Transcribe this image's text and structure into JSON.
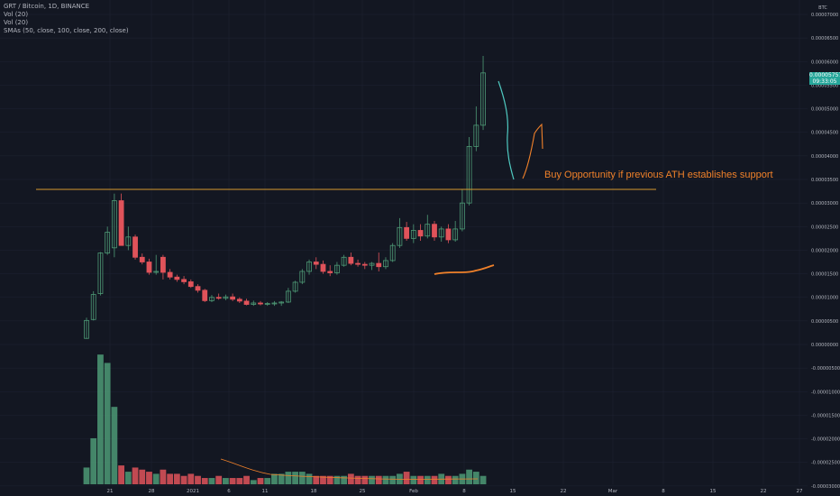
{
  "header": {
    "symbol_line": "GRT / Bitcoin, 1D, BINANCE",
    "vol_line_1": "Vol (20)",
    "vol_line_2": "Vol (20)",
    "sma_line": "SMAs (50, close, 100, close, 200, close)"
  },
  "axis": {
    "currency": "BTC",
    "price_ticks": [
      "0.00007000",
      "0.00006500",
      "0.00006000",
      "0.00005500",
      "0.00005000",
      "0.00004500",
      "0.00004000",
      "0.00003500",
      "0.00003000",
      "0.00002500",
      "0.00002000",
      "0.00001500",
      "0.00001000",
      "0.00000500",
      "0.00000000",
      "-0.00000500",
      "-0.00001000",
      "-0.00001500",
      "-0.00002000",
      "-0.00002500",
      "-0.00003000"
    ],
    "date_ticks": [
      "21",
      "28",
      "2021",
      "6",
      "11",
      "18",
      "25",
      "Feb",
      "8",
      "15",
      "22",
      "Mar",
      "8",
      "15",
      "22",
      "27"
    ]
  },
  "last_price": {
    "value": "0.00005757",
    "countdown": "09:33:05"
  },
  "annotation": {
    "text": "Buy Opportunity if previous ATH establishes support"
  },
  "colors": {
    "up": "#4e9a76",
    "down": "#e0535a",
    "annotation": "#f0812a",
    "level_line": "#d79a2e",
    "projection": "#4fc9c0",
    "background": "#131722",
    "grid": "#1f2433"
  },
  "chart_data": {
    "type": "candlestick",
    "title": "GRT / Bitcoin, 1D, BINANCE",
    "ylim": [
      -3e-05,
      7e-05
    ],
    "previous_ath_level": 3.17e-05,
    "candles": [
      {
        "o": 1.3e-06,
        "h": 5.7e-06,
        "l": 1.2e-06,
        "c": 5.1e-06
      },
      {
        "o": 5.3e-06,
        "h": 1.13e-05,
        "l": 5.1e-06,
        "c": 1.06e-05
      },
      {
        "o": 1.08e-05,
        "h": 1.96e-05,
        "l": 1.04e-05,
        "c": 1.94e-05
      },
      {
        "o": 1.94e-05,
        "h": 2.5e-05,
        "l": 1.9e-05,
        "c": 2.38e-05
      },
      {
        "o": 2.05e-05,
        "h": 3.2e-05,
        "l": 1.85e-05,
        "c": 3.05e-05
      },
      {
        "o": 3.05e-05,
        "h": 3.2e-05,
        "l": 2.1e-05,
        "c": 2.1e-05
      },
      {
        "o": 2.1e-05,
        "h": 2.5e-05,
        "l": 2e-05,
        "c": 2.28e-05
      },
      {
        "o": 2.28e-05,
        "h": 2.33e-05,
        "l": 1.8e-05,
        "c": 1.85e-05
      },
      {
        "o": 1.85e-05,
        "h": 1.93e-05,
        "l": 1.7e-05,
        "c": 1.75e-05
      },
      {
        "o": 1.75e-05,
        "h": 1.82e-05,
        "l": 1.48e-05,
        "c": 1.53e-05
      },
      {
        "o": 1.53e-05,
        "h": 1.9e-05,
        "l": 1.48e-05,
        "c": 1.55e-05
      },
      {
        "o": 1.85e-05,
        "h": 1.9e-05,
        "l": 1.38e-05,
        "c": 1.53e-05
      },
      {
        "o": 1.53e-05,
        "h": 1.6e-05,
        "l": 1.38e-05,
        "c": 1.43e-05
      },
      {
        "o": 1.43e-05,
        "h": 1.48e-05,
        "l": 1.33e-05,
        "c": 1.38e-05
      },
      {
        "o": 1.38e-05,
        "h": 1.45e-05,
        "l": 1.28e-05,
        "c": 1.33e-05
      },
      {
        "o": 1.33e-05,
        "h": 1.38e-05,
        "l": 1.2e-05,
        "c": 1.23e-05
      },
      {
        "o": 1.23e-05,
        "h": 1.28e-05,
        "l": 1.1e-05,
        "c": 1.15e-05
      },
      {
        "o": 1.15e-05,
        "h": 1.18e-05,
        "l": 9e-06,
        "c": 9.3e-06
      },
      {
        "o": 9.3e-06,
        "h": 1.05e-05,
        "l": 9e-06,
        "c": 1e-05
      },
      {
        "o": 1e-05,
        "h": 1.08e-05,
        "l": 9.5e-06,
        "c": 9.8e-06
      },
      {
        "o": 9.8e-06,
        "h": 1.06e-05,
        "l": 9.4e-06,
        "c": 1.01e-05
      },
      {
        "o": 1.01e-05,
        "h": 1.08e-05,
        "l": 9.2e-06,
        "c": 9.6e-06
      },
      {
        "o": 9.6e-06,
        "h": 1e-05,
        "l": 8.8e-06,
        "c": 9.2e-06
      },
      {
        "o": 9.2e-06,
        "h": 9.7e-06,
        "l": 8.3e-06,
        "c": 8.5e-06
      },
      {
        "o": 8.5e-06,
        "h": 9.3e-06,
        "l": 8.2e-06,
        "c": 8.8e-06
      },
      {
        "o": 8.8e-06,
        "h": 9.2e-06,
        "l": 8.3e-06,
        "c": 8.6e-06
      },
      {
        "o": 8.6e-06,
        "h": 9e-06,
        "l": 8.2e-06,
        "c": 8.7e-06
      },
      {
        "o": 8.7e-06,
        "h": 9.2e-06,
        "l": 8.2e-06,
        "c": 8.8e-06
      },
      {
        "o": 8.8e-06,
        "h": 9.2e-06,
        "l": 8.2e-06,
        "c": 9e-06
      },
      {
        "o": 9e-06,
        "h": 1.2e-05,
        "l": 8.8e-06,
        "c": 1.13e-05
      },
      {
        "o": 1.13e-05,
        "h": 1.35e-05,
        "l": 1.1e-05,
        "c": 1.32e-05
      },
      {
        "o": 1.32e-05,
        "h": 1.6e-05,
        "l": 1.28e-05,
        "c": 1.55e-05
      },
      {
        "o": 1.55e-05,
        "h": 1.8e-05,
        "l": 1.48e-05,
        "c": 1.75e-05
      },
      {
        "o": 1.75e-05,
        "h": 1.85e-05,
        "l": 1.6e-05,
        "c": 1.7e-05
      },
      {
        "o": 1.7e-05,
        "h": 1.78e-05,
        "l": 1.5e-05,
        "c": 1.55e-05
      },
      {
        "o": 1.55e-05,
        "h": 1.68e-05,
        "l": 1.45e-05,
        "c": 1.52e-05
      },
      {
        "o": 1.52e-05,
        "h": 1.75e-05,
        "l": 1.48e-05,
        "c": 1.68e-05
      },
      {
        "o": 1.68e-05,
        "h": 1.9e-05,
        "l": 1.65e-05,
        "c": 1.85e-05
      },
      {
        "o": 1.85e-05,
        "h": 1.95e-05,
        "l": 1.68e-05,
        "c": 1.72e-05
      },
      {
        "o": 1.72e-05,
        "h": 1.8e-05,
        "l": 1.65e-05,
        "c": 1.7e-05
      },
      {
        "o": 1.7e-05,
        "h": 1.75e-05,
        "l": 1.6e-05,
        "c": 1.68e-05
      },
      {
        "o": 1.68e-05,
        "h": 1.75e-05,
        "l": 1.58e-05,
        "c": 1.72e-05
      },
      {
        "o": 1.72e-05,
        "h": 1.95e-05,
        "l": 1.55e-05,
        "c": 1.65e-05
      },
      {
        "o": 1.65e-05,
        "h": 1.85e-05,
        "l": 1.6e-05,
        "c": 1.78e-05
      },
      {
        "o": 1.78e-05,
        "h": 2.15e-05,
        "l": 1.75e-05,
        "c": 2.1e-05
      },
      {
        "o": 2.1e-05,
        "h": 2.68e-05,
        "l": 2.05e-05,
        "c": 2.48e-05
      },
      {
        "o": 2.48e-05,
        "h": 2.6e-05,
        "l": 2.2e-05,
        "c": 2.25e-05
      },
      {
        "o": 2.25e-05,
        "h": 2.55e-05,
        "l": 2.15e-05,
        "c": 2.42e-05
      },
      {
        "o": 2.42e-05,
        "h": 2.55e-05,
        "l": 2.2e-05,
        "c": 2.3e-05
      },
      {
        "o": 2.3e-05,
        "h": 2.75e-05,
        "l": 2.25e-05,
        "c": 2.55e-05
      },
      {
        "o": 2.55e-05,
        "h": 2.62e-05,
        "l": 2.2e-05,
        "c": 2.28e-05
      },
      {
        "o": 2.28e-05,
        "h": 2.5e-05,
        "l": 2.18e-05,
        "c": 2.45e-05
      },
      {
        "o": 2.45e-05,
        "h": 2.55e-05,
        "l": 2.15e-05,
        "c": 2.22e-05
      },
      {
        "o": 2.22e-05,
        "h": 2.62e-05,
        "l": 2.18e-05,
        "c": 2.45e-05
      },
      {
        "o": 2.45e-05,
        "h": 3.3e-05,
        "l": 2.4e-05,
        "c": 3e-05
      },
      {
        "o": 3e-05,
        "h": 4.4e-05,
        "l": 2.95e-05,
        "c": 4.2e-05
      },
      {
        "o": 4.2e-05,
        "h": 5.05e-05,
        "l": 4.1e-05,
        "c": 4.65e-05
      },
      {
        "o": 4.65e-05,
        "h": 6.12e-05,
        "l": 4.55e-05,
        "c": 5.76e-05
      }
    ],
    "volume_scale_max": 1.0,
    "volumes": [
      0.08,
      0.22,
      0.62,
      0.58,
      0.37,
      0.09,
      0.06,
      0.08,
      0.07,
      0.06,
      0.05,
      0.07,
      0.05,
      0.05,
      0.04,
      0.05,
      0.04,
      0.03,
      0.03,
      0.04,
      0.03,
      0.03,
      0.03,
      0.04,
      0.02,
      0.03,
      0.03,
      0.05,
      0.05,
      0.06,
      0.06,
      0.06,
      0.05,
      0.04,
      0.04,
      0.04,
      0.04,
      0.04,
      0.05,
      0.04,
      0.04,
      0.04,
      0.04,
      0.04,
      0.04,
      0.05,
      0.06,
      0.04,
      0.04,
      0.04,
      0.04,
      0.05,
      0.04,
      0.04,
      0.05,
      0.07,
      0.06,
      0.04
    ]
  }
}
